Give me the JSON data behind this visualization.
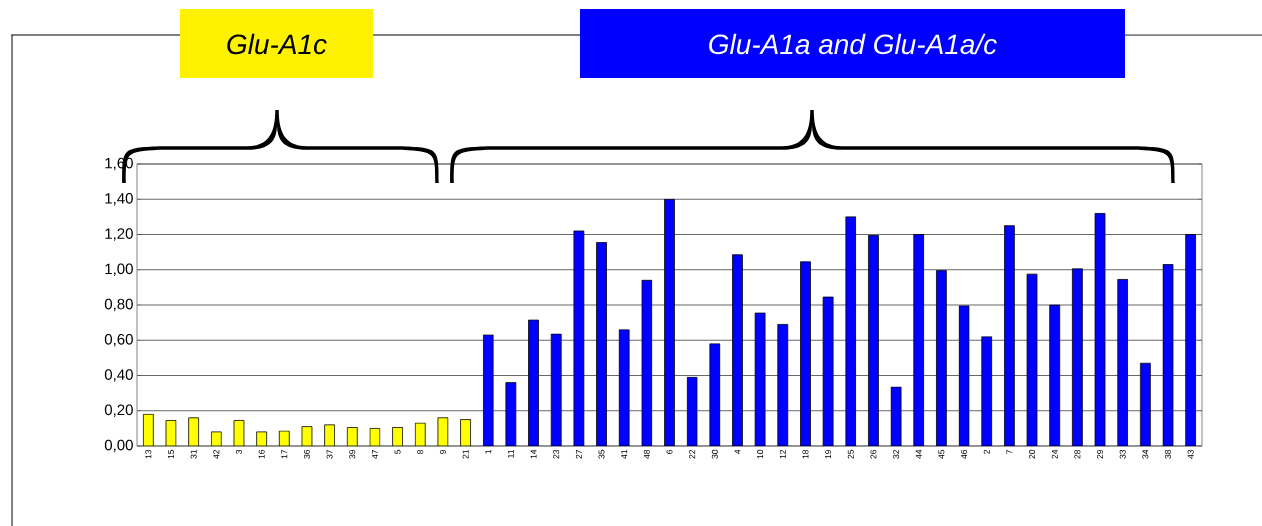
{
  "chart_data": {
    "type": "bar",
    "annotations": [
      "Glu-A1c",
      "Glu-A1a and Glu-A1a/c"
    ],
    "categories": [
      "13",
      "15",
      "31",
      "42",
      "3",
      "16",
      "17",
      "36",
      "37",
      "39",
      "47",
      "5",
      "8",
      "9",
      "21",
      "1",
      "11",
      "14",
      "23",
      "27",
      "35",
      "41",
      "48",
      "6",
      "22",
      "30",
      "4",
      "10",
      "12",
      "18",
      "19",
      "25",
      "26",
      "32",
      "44",
      "45",
      "46",
      "2",
      "7",
      "20",
      "24",
      "28",
      "29",
      "33",
      "34",
      "38",
      "43"
    ],
    "values": [
      0.18,
      0.145,
      0.16,
      0.08,
      0.145,
      0.08,
      0.085,
      0.11,
      0.12,
      0.105,
      0.1,
      0.105,
      0.13,
      0.16,
      0.15,
      0.63,
      0.36,
      0.715,
      0.635,
      1.22,
      1.155,
      0.66,
      0.94,
      1.4,
      0.39,
      0.58,
      1.085,
      0.755,
      0.69,
      1.045,
      0.845,
      1.3,
      1.195,
      0.335,
      1.2,
      0.995,
      0.795,
      0.62,
      1.25,
      0.975,
      0.8,
      1.005,
      1.32,
      0.945,
      0.47,
      1.03,
      1.2
    ],
    "colors": [
      "#ffff00",
      "#ffff00",
      "#ffff00",
      "#ffff00",
      "#ffff00",
      "#ffff00",
      "#ffff00",
      "#ffff00",
      "#ffff00",
      "#ffff00",
      "#ffff00",
      "#ffff00",
      "#ffff00",
      "#ffff00",
      "#ffff00",
      "#0000ff",
      "#0000ff",
      "#0000ff",
      "#0000ff",
      "#0000ff",
      "#0000ff",
      "#0000ff",
      "#0000ff",
      "#0000ff",
      "#0000ff",
      "#0000ff",
      "#0000ff",
      "#0000ff",
      "#0000ff",
      "#0000ff",
      "#0000ff",
      "#0000ff",
      "#0000ff",
      "#0000ff",
      "#0000ff",
      "#0000ff",
      "#0000ff",
      "#0000ff",
      "#0000ff",
      "#0000ff",
      "#0000ff",
      "#0000ff",
      "#0000ff",
      "#0000ff",
      "#0000ff",
      "#0000ff",
      "#0000ff"
    ],
    "ylim": [
      0,
      1.6
    ],
    "yticks": [
      {
        "value": 0,
        "label": "0,00"
      },
      {
        "value": 0.2,
        "label": "0,20"
      },
      {
        "value": 0.4,
        "label": "0,40"
      },
      {
        "value": 0.6,
        "label": "0,60"
      },
      {
        "value": 0.8,
        "label": "0,80"
      },
      {
        "value": 1.0,
        "label": "1,00"
      },
      {
        "value": 1.2,
        "label": "1,20"
      },
      {
        "value": 1.4,
        "label": "1,40"
      },
      {
        "value": 1.6,
        "label": "1,60"
      }
    ],
    "grid": "y"
  }
}
